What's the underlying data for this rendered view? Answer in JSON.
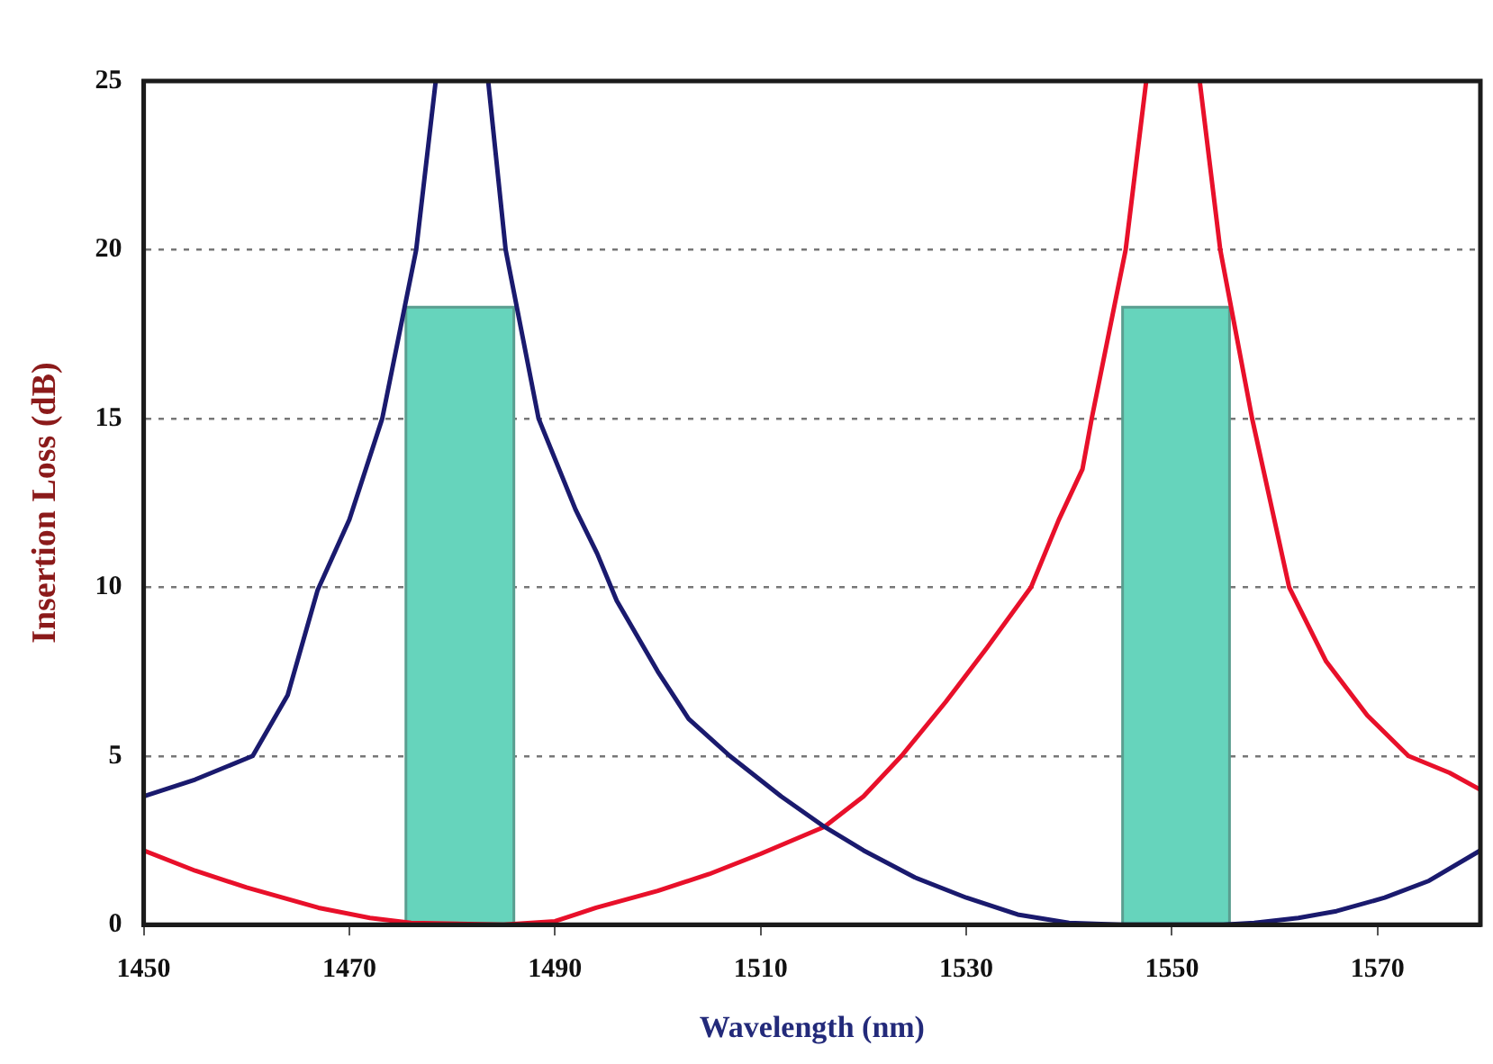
{
  "chart_data": {
    "type": "line",
    "xlabel": "Wavelength (nm)",
    "ylabel": "Insertion Loss (dB)",
    "xlim": [
      1450,
      1580
    ],
    "xticks": [
      1450,
      1470,
      1490,
      1510,
      1530,
      1550,
      1570
    ],
    "ylim": [
      0,
      25
    ],
    "yticks": [
      0,
      5,
      10,
      15,
      20,
      25
    ],
    "grid": "y",
    "legend": false,
    "marker": "none",
    "line_style": "solid",
    "series": [
      {
        "type": "area",
        "color": "#66d4bc",
        "x": [
          1475.5,
          1475.5,
          1486,
          1486
        ],
        "values": [
          0,
          18.3,
          18.3,
          0
        ]
      },
      {
        "type": "area",
        "color": "#66d4bc",
        "x": [
          1545.2,
          1545.2,
          1555.6,
          1555.6
        ],
        "values": [
          0,
          18.3,
          18.3,
          0
        ]
      },
      {
        "color": "#1a1a6e",
        "x": [
          1450,
          1455,
          1460.6,
          1464,
          1466.9,
          1470,
          1473.2,
          1476.5,
          1478.4,
          1481,
          1483.5,
          1485.2,
          1488.4,
          1492,
          1494.1,
          1496,
          1500,
          1503,
          1507,
          1512,
          1516.2,
          1520,
          1525,
          1530,
          1535,
          1540,
          1545,
          1555,
          1558,
          1562.3,
          1566,
          1570.7,
          1575,
          1580
        ],
        "values": [
          3.8,
          4.3,
          5,
          6.8,
          9.9,
          12,
          15,
          20,
          25,
          null,
          25,
          20,
          15,
          12.3,
          11,
          9.6,
          7.5,
          6.1,
          5,
          3.8,
          2.9,
          2.2,
          1.4,
          0.8,
          0.3,
          0.05,
          0,
          0,
          0.05,
          0.2,
          0.4,
          0.8,
          1.3,
          2.2
        ]
      },
      {
        "color": "#e8102a",
        "x": [
          1450,
          1455,
          1460,
          1467,
          1472,
          1476,
          1485,
          1490,
          1494,
          1500,
          1505,
          1510,
          1516.2,
          1520,
          1523.7,
          1528,
          1532,
          1536.3,
          1539,
          1541.3,
          1542.2,
          1545.5,
          1547.5,
          1550,
          1552.7,
          1554.7,
          1557.8,
          1561.4,
          1565,
          1569,
          1573,
          1577,
          1580
        ],
        "values": [
          2.2,
          1.6,
          1.1,
          0.5,
          0.2,
          0.05,
          0,
          0.1,
          0.5,
          1,
          1.5,
          2.1,
          2.9,
          3.8,
          5,
          6.6,
          8.2,
          10,
          12,
          13.5,
          15,
          20,
          25,
          null,
          25,
          20,
          15,
          10,
          7.8,
          6.2,
          5,
          4.5,
          4.0
        ]
      }
    ]
  }
}
